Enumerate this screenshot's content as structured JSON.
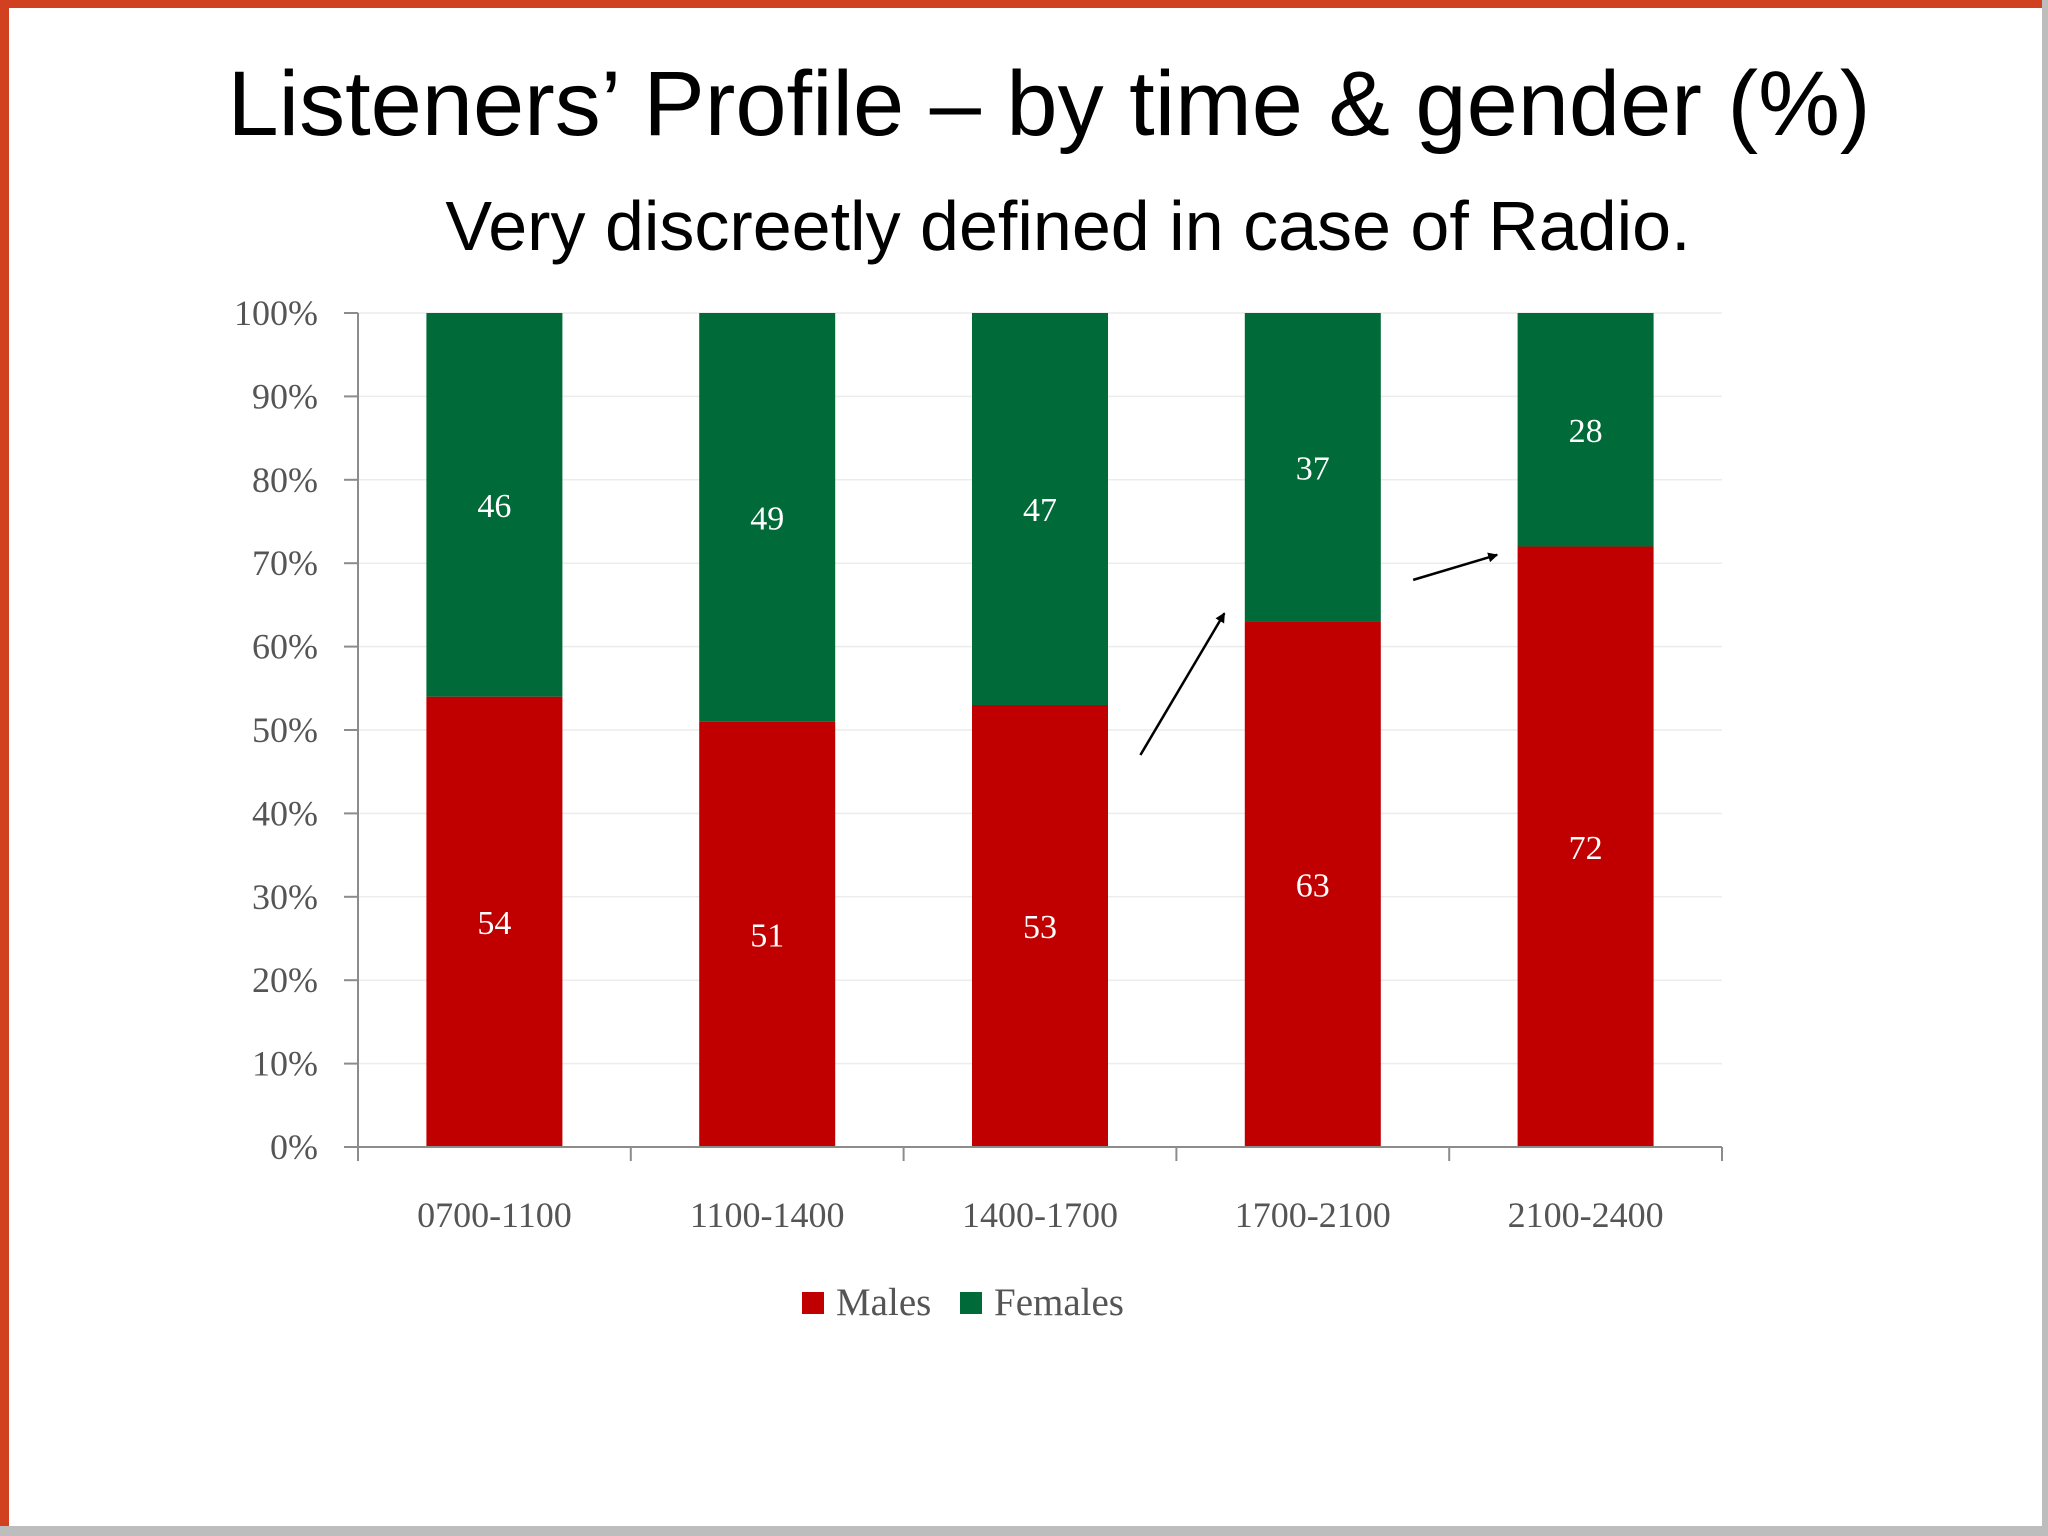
{
  "title": "Listeners’ Profile – by time & gender (%)",
  "subtitle": "Very discreetly defined in case of Radio.",
  "chart_data": {
    "type": "bar",
    "stacked": true,
    "categories": [
      "0700-1100",
      "1100-1400",
      "1400-1700",
      "1700-2100",
      "2100-2400"
    ],
    "series": [
      {
        "name": "Males",
        "values": [
          54,
          51,
          53,
          63,
          72
        ],
        "color": "#c00000"
      },
      {
        "name": "Females",
        "values": [
          46,
          49,
          47,
          37,
          28
        ],
        "color": "#006a38"
      }
    ],
    "ylim": [
      0,
      100
    ],
    "yticks": [
      "0%",
      "10%",
      "20%",
      "30%",
      "40%",
      "50%",
      "60%",
      "70%",
      "80%",
      "90%",
      "100%"
    ],
    "grid": true,
    "legend": "bottom",
    "annotations": [
      "arrow up between 1400-1700 and 1700-2100",
      "arrow up between 1700-2100 and 2100-2400"
    ]
  }
}
